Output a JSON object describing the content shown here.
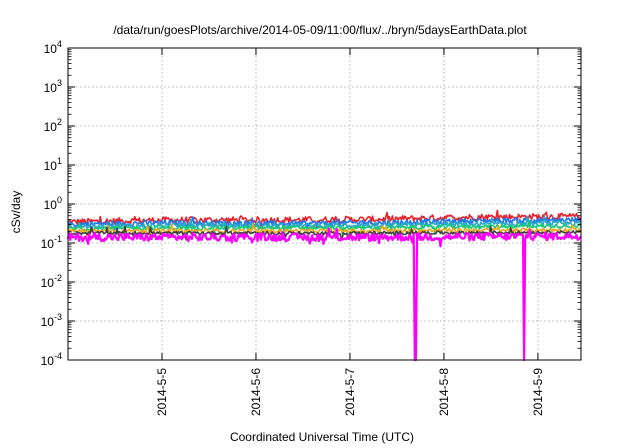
{
  "chart_data": {
    "type": "line",
    "title": "/data/run/goesPlots/archive/2014-05-09/11:00/flux/../bryn/5daysEarthData.plot",
    "xlabel": "Coordinated Universal Time (UTC)",
    "ylabel": "cSv/day",
    "x_range": [
      "2014-05-04 00:00",
      "2014-05-09 11:00"
    ],
    "x_ticks": [
      "2014-5-5",
      "2014-5-6",
      "2014-5-7",
      "2014-5-8",
      "2014-5-9"
    ],
    "x_tick_dates": [
      "2014-05-05",
      "2014-05-06",
      "2014-05-07",
      "2014-05-08",
      "2014-05-09"
    ],
    "y_scale": "log",
    "ylim": [
      0.0001,
      10000
    ],
    "y_ticks": [
      {
        "base": "10",
        "exp": "4",
        "value": 10000
      },
      {
        "base": "10",
        "exp": "3",
        "value": 1000
      },
      {
        "base": "10",
        "exp": "2",
        "value": 100
      },
      {
        "base": "10",
        "exp": "1",
        "value": 10
      },
      {
        "base": "10",
        "exp": "0",
        "value": 1
      },
      {
        "base": "10",
        "exp": "-1",
        "value": 0.1
      },
      {
        "base": "10",
        "exp": "-2",
        "value": 0.01
      },
      {
        "base": "10",
        "exp": "-3",
        "value": 0.001
      },
      {
        "base": "10",
        "exp": "-4",
        "value": 0.0001
      }
    ],
    "grid": true,
    "series": [
      {
        "color": "#e8202a",
        "values": [
          [
            0.4,
            0.3
          ],
          [
            0.4,
            0.38
          ],
          [
            0.4,
            0.38
          ],
          [
            0.42,
            0.39
          ],
          [
            0.48,
            0.45
          ],
          [
            0.5,
            0.46
          ]
        ],
        "noise": 0.08
      },
      {
        "color": "#1f77e8",
        "values": [
          [
            0.35,
            0.26
          ],
          [
            0.34,
            0.32
          ],
          [
            0.33,
            0.3
          ],
          [
            0.34,
            0.32
          ],
          [
            0.38,
            0.36
          ],
          [
            0.4,
            0.38
          ]
        ],
        "noise": 0.07
      },
      {
        "color": "#2aa8c8",
        "values": [
          [
            0.3,
            0.23
          ],
          [
            0.29,
            0.27
          ],
          [
            0.29,
            0.27
          ],
          [
            0.29,
            0.28
          ],
          [
            0.31,
            0.3
          ],
          [
            0.33,
            0.31
          ]
        ],
        "noise": 0.06
      },
      {
        "color": "#18c878",
        "values": [
          [
            0.26,
            0.21
          ],
          [
            0.25,
            0.24
          ],
          [
            0.25,
            0.24
          ],
          [
            0.25,
            0.24
          ],
          [
            0.27,
            0.26
          ],
          [
            0.28,
            0.27
          ]
        ],
        "noise": 0.05
      },
      {
        "color": "#e8a818",
        "values": [
          [
            0.22,
            0.19
          ],
          [
            0.21,
            0.2
          ],
          [
            0.21,
            0.2
          ],
          [
            0.21,
            0.2
          ],
          [
            0.22,
            0.21
          ],
          [
            0.22,
            0.21
          ]
        ],
        "noise": 0.05
      },
      {
        "color": "#404040",
        "values": [
          [
            0.19,
            0.17
          ],
          [
            0.18,
            0.18
          ],
          [
            0.18,
            0.18
          ],
          [
            0.18,
            0.18
          ],
          [
            0.19,
            0.18
          ],
          [
            0.19,
            0.19
          ]
        ],
        "noise": 0.04
      },
      {
        "color": "#ff00ff",
        "values": [
          [
            0.15,
            0.13
          ],
          [
            0.14,
            0.14
          ],
          [
            0.14,
            0.14
          ],
          [
            0.14,
            0.14
          ],
          [
            0.15,
            0.14
          ],
          [
            0.15,
            0.15
          ]
        ],
        "noise": 0.1,
        "dropouts": [
          {
            "start": "2014-05-07 16:30",
            "end": "2014-05-07 17:00",
            "value": 0.0001
          },
          {
            "start": "2014-05-08 20:15",
            "end": "2014-05-08 20:35",
            "value": 0.0001
          }
        ]
      }
    ]
  }
}
